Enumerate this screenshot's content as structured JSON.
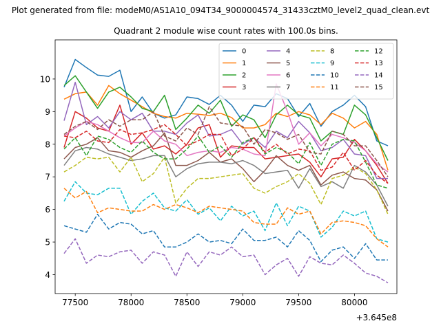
{
  "chart_data": {
    "type": "line",
    "suptitle": "Plot generated from file: modeM0/AS1A10_094T34_9000004574_31433cztM0_level2_quad_clean.evt",
    "title": "Quadrant 2 module wise count rates with 100.0s bins.",
    "xlabel": "",
    "ylabel": "",
    "x_offset_label": "+3.645e8",
    "xlim": [
      77320,
      80380
    ],
    "ylim": [
      3.42,
      11.2
    ],
    "xticks": [
      77500,
      78000,
      78500,
      79000,
      79500,
      80000
    ],
    "yticks": [
      4,
      5,
      6,
      7,
      8,
      9,
      10
    ],
    "grid": false,
    "legend_placement": "top-right",
    "x": [
      77400,
      77500,
      77600,
      77700,
      77800,
      77900,
      78000,
      78100,
      78200,
      78300,
      78400,
      78500,
      78600,
      78700,
      78800,
      78900,
      79000,
      79100,
      79200,
      79300,
      79400,
      79500,
      79600,
      79700,
      79800,
      79900,
      80000,
      80100,
      80200,
      80300
    ],
    "series": [
      {
        "name": "0",
        "color": "#1f77b4",
        "dash": "solid",
        "values": [
          9.75,
          10.6,
          10.35,
          10.12,
          10.08,
          10.27,
          9.0,
          9.45,
          8.95,
          8.8,
          8.9,
          9.45,
          9.4,
          9.22,
          9.5,
          9.2,
          8.7,
          9.2,
          9.15,
          9.55,
          9.4,
          8.85,
          9.25,
          8.55,
          9.0,
          9.2,
          9.5,
          9.15,
          8.1,
          7.95
        ]
      },
      {
        "name": "1",
        "color": "#ff7f0e",
        "dash": "solid",
        "values": [
          9.38,
          9.55,
          9.6,
          9.2,
          9.8,
          9.55,
          9.35,
          9.15,
          8.95,
          8.85,
          8.8,
          8.95,
          8.92,
          8.88,
          8.95,
          8.82,
          8.5,
          8.5,
          8.6,
          8.95,
          8.85,
          9.0,
          8.9,
          8.6,
          8.95,
          8.8,
          8.5,
          8.7,
          8.3,
          7.2
        ]
      },
      {
        "name": "2",
        "color": "#2ca02c",
        "dash": "solid",
        "values": [
          9.8,
          10.1,
          9.6,
          9.1,
          9.6,
          9.75,
          9.45,
          9.1,
          9.0,
          9.5,
          8.45,
          8.8,
          9.2,
          8.95,
          9.35,
          8.55,
          8.9,
          8.75,
          8.2,
          8.9,
          9.2,
          8.9,
          8.8,
          8.1,
          8.4,
          8.3,
          9.2,
          8.9,
          8.2,
          7.5
        ]
      },
      {
        "name": "3",
        "color": "#d62728",
        "dash": "solid",
        "values": [
          7.9,
          9.0,
          8.8,
          8.5,
          8.4,
          9.2,
          8.0,
          8.35,
          7.85,
          7.95,
          7.7,
          8.0,
          8.5,
          8.6,
          7.6,
          7.95,
          7.9,
          7.9,
          7.55,
          7.6,
          7.65,
          7.7,
          7.45,
          7.0,
          7.55,
          7.6,
          8.15,
          7.8,
          7.35,
          6.8
        ]
      },
      {
        "name": "4",
        "color": "#9467bd",
        "dash": "solid",
        "values": [
          8.72,
          9.9,
          8.6,
          8.85,
          8.5,
          9.0,
          8.75,
          8.95,
          8.4,
          8.4,
          8.3,
          8.65,
          8.9,
          8.25,
          8.3,
          8.45,
          8.0,
          8.2,
          7.9,
          8.4,
          8.2,
          8.7,
          8.35,
          7.8,
          7.9,
          8.15,
          7.7,
          7.65,
          6.95,
          6.95
        ]
      },
      {
        "name": "5",
        "color": "#8c564b",
        "dash": "solid",
        "values": [
          7.55,
          7.9,
          8.0,
          8.2,
          7.8,
          7.75,
          7.6,
          7.8,
          7.95,
          8.35,
          7.35,
          7.35,
          7.5,
          7.75,
          7.45,
          7.55,
          7.25,
          6.85,
          7.2,
          7.65,
          7.35,
          7.2,
          7.35,
          6.75,
          7.05,
          7.15,
          6.95,
          6.9,
          6.6,
          5.95
        ]
      },
      {
        "name": "6",
        "color": "#e377c2",
        "dash": "solid",
        "values": [
          8.25,
          8.5,
          8.7,
          8.6,
          8.4,
          8.2,
          8.05,
          8.05,
          8.4,
          8.1,
          8.0,
          7.65,
          7.75,
          7.8,
          7.75,
          7.9,
          7.85,
          7.7,
          7.65,
          9.85,
          9.0,
          8.0,
          8.35,
          7.95,
          8.3,
          8.2,
          8.05,
          7.8,
          7.4,
          7.15
        ]
      },
      {
        "name": "7",
        "color": "#7f7f7f",
        "dash": "solid",
        "values": [
          7.35,
          7.8,
          7.9,
          7.85,
          7.7,
          7.6,
          7.5,
          7.55,
          7.65,
          7.65,
          7.0,
          7.25,
          7.4,
          7.45,
          7.45,
          7.4,
          7.5,
          7.35,
          7.1,
          7.15,
          7.2,
          6.65,
          7.25,
          6.7,
          6.85,
          6.65,
          7.35,
          7.15,
          6.75,
          6.1
        ]
      },
      {
        "name": "8",
        "color": "#bcbd22",
        "dash": "dashed",
        "values": [
          7.15,
          7.35,
          7.6,
          7.55,
          7.6,
          7.15,
          7.6,
          6.85,
          7.1,
          7.6,
          6.2,
          6.65,
          6.95,
          6.95,
          7.0,
          7.05,
          7.1,
          6.65,
          6.5,
          6.7,
          6.85,
          7.1,
          6.8,
          6.15,
          6.95,
          7.05,
          7.3,
          7.1,
          6.6,
          5.85
        ]
      },
      {
        "name": "9",
        "color": "#17becf",
        "dash": "dashed",
        "values": [
          6.25,
          6.85,
          6.5,
          6.45,
          6.65,
          6.65,
          5.85,
          6.25,
          6.5,
          6.05,
          5.95,
          6.3,
          5.85,
          6.05,
          5.65,
          6.1,
          5.8,
          5.95,
          5.35,
          6.2,
          5.5,
          6.1,
          5.95,
          5.15,
          5.45,
          5.95,
          5.8,
          5.95,
          5.1,
          5.0
        ]
      },
      {
        "name": "10",
        "color": "#1f77b4",
        "dash": "dashed",
        "values": [
          5.5,
          5.4,
          5.3,
          5.85,
          5.4,
          5.6,
          5.55,
          5.25,
          5.35,
          4.85,
          4.85,
          5.0,
          5.25,
          5.0,
          5.05,
          4.95,
          5.4,
          5.05,
          5.05,
          5.15,
          4.85,
          5.35,
          5.05,
          4.4,
          4.75,
          4.85,
          4.5,
          4.95,
          4.45,
          4.45
        ]
      },
      {
        "name": "11",
        "color": "#ff7f0e",
        "dash": "dashed",
        "values": [
          6.65,
          6.35,
          6.55,
          5.9,
          6.05,
          6.0,
          5.95,
          5.95,
          6.15,
          6.0,
          6.15,
          6.05,
          5.9,
          6.1,
          6.05,
          6.0,
          5.95,
          5.6,
          5.55,
          5.55,
          6.05,
          5.85,
          5.95,
          5.25,
          5.6,
          5.65,
          5.6,
          5.5,
          5.1,
          4.85
        ]
      },
      {
        "name": "12",
        "color": "#2ca02c",
        "dash": "dashed",
        "values": [
          7.85,
          8.2,
          7.65,
          8.25,
          8.15,
          7.9,
          7.75,
          8.1,
          7.75,
          7.55,
          7.55,
          7.85,
          8.25,
          7.75,
          7.95,
          7.6,
          8.05,
          8.2,
          7.7,
          7.9,
          7.75,
          7.4,
          8.05,
          7.35,
          8.0,
          8.15,
          8.1,
          7.45,
          6.75,
          6.65
        ]
      },
      {
        "name": "13",
        "color": "#d62728",
        "dash": "dashed",
        "values": [
          8.25,
          8.2,
          8.4,
          8.1,
          8.05,
          8.45,
          8.3,
          8.35,
          8.45,
          8.6,
          8.3,
          7.95,
          8.1,
          8.3,
          8.3,
          7.65,
          7.85,
          8.2,
          7.75,
          8.0,
          7.7,
          7.85,
          7.8,
          7.2,
          7.3,
          7.75,
          7.2,
          7.5,
          7.05,
          6.8
        ]
      },
      {
        "name": "14",
        "color": "#9467bd",
        "dash": "dashed",
        "values": [
          4.65,
          5.1,
          4.35,
          4.6,
          4.55,
          4.7,
          4.75,
          4.35,
          4.7,
          4.6,
          3.95,
          4.7,
          4.25,
          4.7,
          4.6,
          4.85,
          4.55,
          4.6,
          4.0,
          4.3,
          4.5,
          3.95,
          4.55,
          4.35,
          4.3,
          4.6,
          4.35,
          4.05,
          3.95,
          3.75
        ]
      },
      {
        "name": "15",
        "color": "#8c564b",
        "dash": "dashed",
        "values": [
          8.3,
          8.55,
          8.7,
          8.45,
          8.75,
          8.55,
          8.75,
          8.75,
          9.0,
          8.25,
          8.1,
          8.5,
          8.3,
          9.15,
          8.65,
          8.6,
          8.55,
          8.0,
          8.45,
          8.35,
          8.15,
          8.3,
          7.75,
          7.7,
          8.4,
          8.3,
          7.95,
          7.95,
          7.5,
          7.0
        ]
      }
    ]
  }
}
